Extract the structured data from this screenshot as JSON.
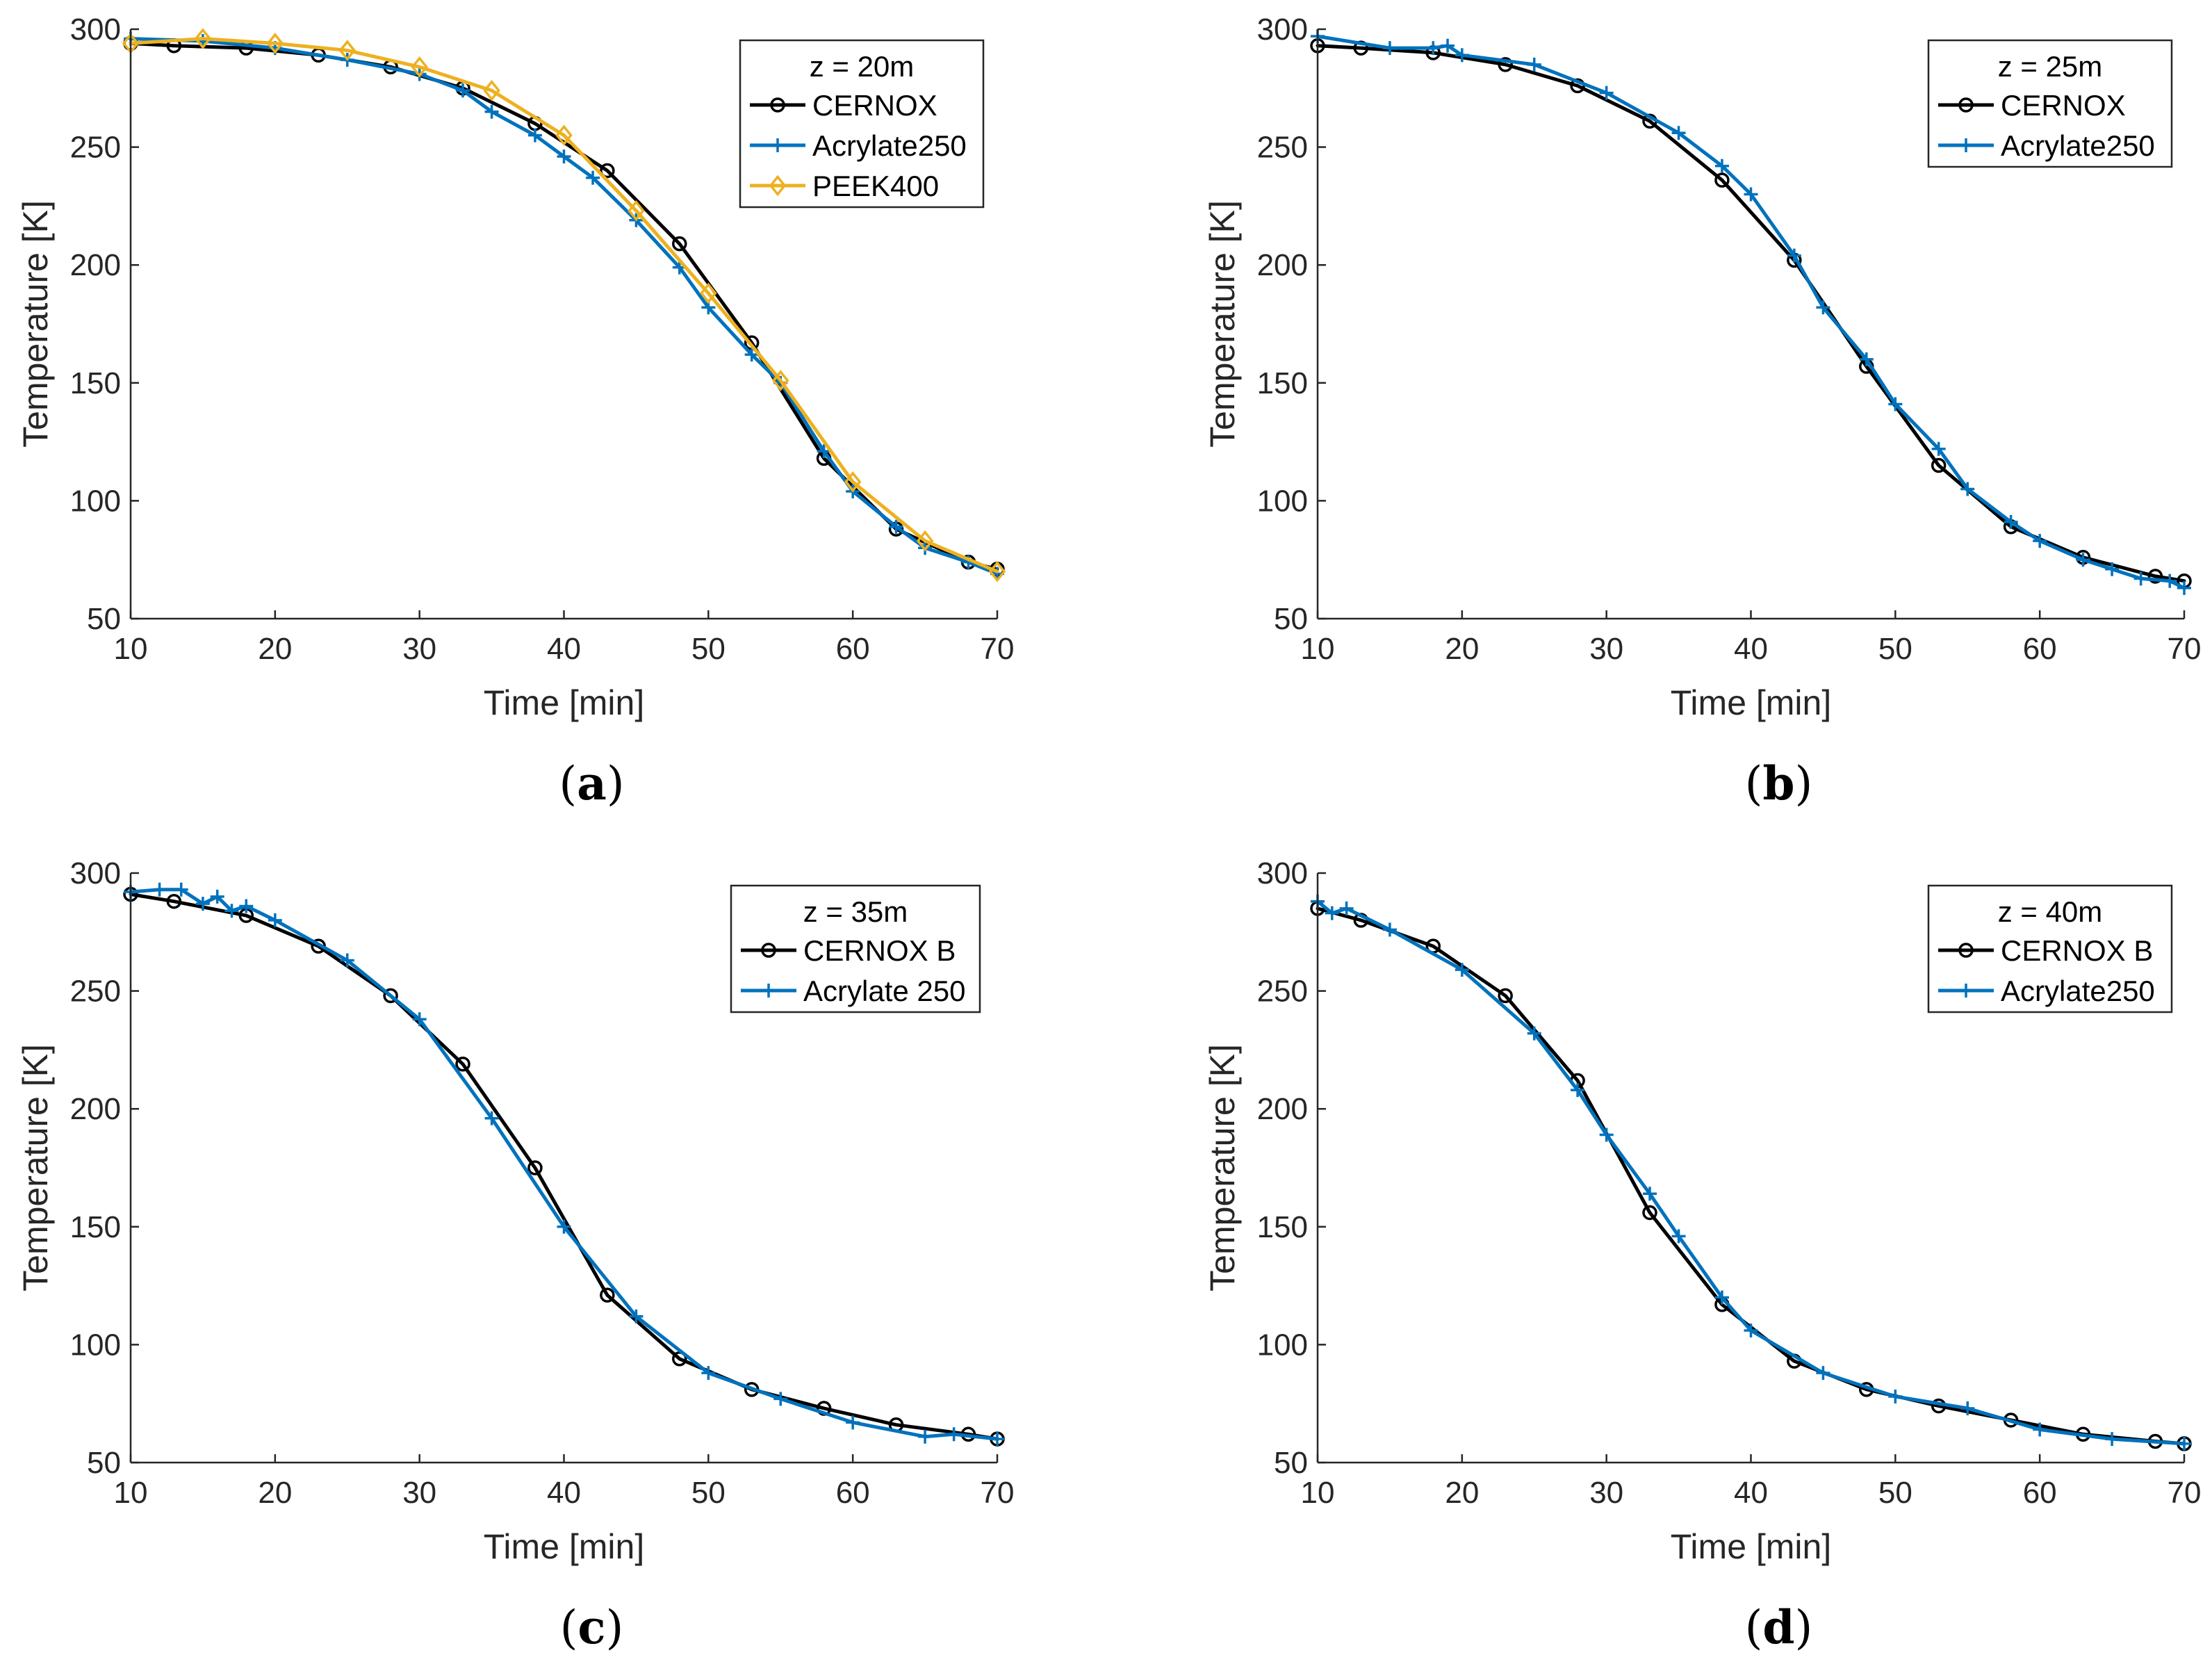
{
  "figure": {
    "background": "#ffffff",
    "line_colors": {
      "cernox": "#000000",
      "acrylate": "#0072BD",
      "peek": "#EDB120"
    }
  },
  "chart_data": [
    {
      "type": "line",
      "panel": "a",
      "caption": "(a)",
      "caption_open": "(",
      "caption_letter": "a",
      "caption_close": ")",
      "xlabel": "Time [min]",
      "ylabel": "Temperature [K]",
      "xlim": [
        10,
        70
      ],
      "ylim": [
        50,
        300
      ],
      "xticks": [
        10,
        20,
        30,
        40,
        50,
        60,
        70
      ],
      "yticks": [
        50,
        100,
        150,
        200,
        250,
        300
      ],
      "grid": false,
      "legend_title": "z = 20m",
      "legend_position": "top-right",
      "series": [
        {
          "name": "CERNOX",
          "color": "#000000",
          "marker": "circle",
          "x": [
            10,
            13,
            18,
            23,
            28,
            33,
            38,
            43,
            48,
            53,
            58,
            63,
            68,
            70
          ],
          "y": [
            294,
            293,
            292,
            289,
            284,
            275,
            260,
            240,
            209,
            167,
            118,
            88,
            74,
            71
          ]
        },
        {
          "name": "Acrylate250",
          "color": "#0072BD",
          "marker": "plus",
          "x": [
            10,
            15,
            20,
            25,
            30,
            33,
            35,
            38,
            40,
            42,
            45,
            48,
            50,
            53,
            55,
            58,
            60,
            63,
            65,
            68,
            70
          ],
          "y": [
            296,
            295,
            292,
            287,
            281,
            274,
            265,
            255,
            246,
            237,
            219,
            199,
            182,
            162,
            150,
            121,
            104,
            89,
            80,
            74,
            69
          ]
        },
        {
          "name": "PEEK400",
          "color": "#EDB120",
          "marker": "diamond",
          "x": [
            10,
            15,
            20,
            25,
            30,
            35,
            40,
            45,
            50,
            55,
            60,
            65,
            70
          ],
          "y": [
            294,
            296,
            294,
            291,
            284,
            274,
            255,
            223,
            188,
            151,
            108,
            83,
            70
          ]
        }
      ]
    },
    {
      "type": "line",
      "panel": "b",
      "caption": "(b)",
      "caption_open": "(",
      "caption_letter": "b",
      "caption_close": ")",
      "xlabel": "Time [min]",
      "ylabel": "Temperature [K]",
      "xlim": [
        10,
        70
      ],
      "ylim": [
        50,
        300
      ],
      "xticks": [
        10,
        20,
        30,
        40,
        50,
        60,
        70
      ],
      "yticks": [
        50,
        100,
        150,
        200,
        250,
        300
      ],
      "grid": false,
      "legend_title": "z = 25m",
      "legend_position": "top-right",
      "series": [
        {
          "name": "CERNOX",
          "color": "#000000",
          "marker": "circle",
          "x": [
            10,
            13,
            18,
            23,
            28,
            33,
            38,
            43,
            48,
            53,
            58,
            63,
            68,
            70
          ],
          "y": [
            293,
            292,
            290,
            285,
            276,
            261,
            236,
            202,
            157,
            115,
            89,
            76,
            68,
            66
          ]
        },
        {
          "name": "Acrylate250",
          "color": "#0072BD",
          "marker": "plus",
          "x": [
            10,
            15,
            18,
            19,
            20,
            25,
            30,
            35,
            38,
            40,
            43,
            45,
            48,
            50,
            53,
            55,
            58,
            60,
            63,
            65,
            67,
            69,
            70
          ],
          "y": [
            297,
            292,
            292,
            293,
            289,
            285,
            273,
            256,
            242,
            230,
            204,
            182,
            160,
            141,
            122,
            105,
            91,
            83,
            75,
            71,
            67,
            66,
            63
          ]
        }
      ]
    },
    {
      "type": "line",
      "panel": "c",
      "caption": "(c)",
      "caption_open": "(",
      "caption_letter": "c",
      "caption_close": ")",
      "xlabel": "Time [min]",
      "ylabel": "Temperature [K]",
      "xlim": [
        10,
        70
      ],
      "ylim": [
        50,
        300
      ],
      "xticks": [
        10,
        20,
        30,
        40,
        50,
        60,
        70
      ],
      "yticks": [
        50,
        100,
        150,
        200,
        250,
        300
      ],
      "grid": false,
      "legend_title": "z = 35m",
      "legend_position": "top-right",
      "series": [
        {
          "name": "CERNOX B",
          "color": "#000000",
          "marker": "circle",
          "x": [
            10,
            13,
            18,
            23,
            28,
            33,
            38,
            43,
            48,
            53,
            58,
            63,
            68,
            70
          ],
          "y": [
            291,
            288,
            282,
            269,
            248,
            219,
            175,
            121,
            94,
            81,
            73,
            66,
            62,
            60
          ]
        },
        {
          "name": "Acrylate 250",
          "color": "#0072BD",
          "marker": "plus",
          "x": [
            10,
            12,
            13.5,
            15,
            16,
            17,
            18,
            20,
            25,
            30,
            35,
            40,
            45,
            50,
            55,
            60,
            65,
            67,
            70
          ],
          "y": [
            292,
            293,
            293,
            287,
            290,
            284,
            286,
            280,
            263,
            238,
            196,
            150,
            112,
            88,
            77,
            67,
            61,
            62,
            60
          ]
        }
      ]
    },
    {
      "type": "line",
      "panel": "d",
      "caption": "(d)",
      "caption_open": "(",
      "caption_letter": "d",
      "caption_close": ")",
      "xlabel": "Time [min]",
      "ylabel": "Temperature [K]",
      "xlim": [
        10,
        70
      ],
      "ylim": [
        50,
        300
      ],
      "xticks": [
        10,
        20,
        30,
        40,
        50,
        60,
        70
      ],
      "yticks": [
        50,
        100,
        150,
        200,
        250,
        300
      ],
      "grid": false,
      "legend_title": "z = 40m",
      "legend_position": "top-right",
      "series": [
        {
          "name": "CERNOX B",
          "color": "#000000",
          "marker": "circle",
          "x": [
            10,
            13,
            18,
            23,
            28,
            33,
            38,
            43,
            48,
            53,
            58,
            63,
            68,
            70
          ],
          "y": [
            285,
            280,
            269,
            248,
            212,
            156,
            117,
            93,
            81,
            74,
            68,
            62,
            59,
            58
          ]
        },
        {
          "name": "Acrylate250",
          "color": "#0072BD",
          "marker": "plus",
          "x": [
            10,
            11,
            12,
            15,
            20,
            25,
            28,
            30,
            33,
            35,
            38,
            40,
            45,
            50,
            55,
            60,
            65,
            70
          ],
          "y": [
            288,
            283,
            285,
            276,
            259,
            232,
            208,
            189,
            164,
            146,
            120,
            106,
            88,
            78,
            73,
            64,
            60,
            58
          ]
        }
      ]
    }
  ]
}
